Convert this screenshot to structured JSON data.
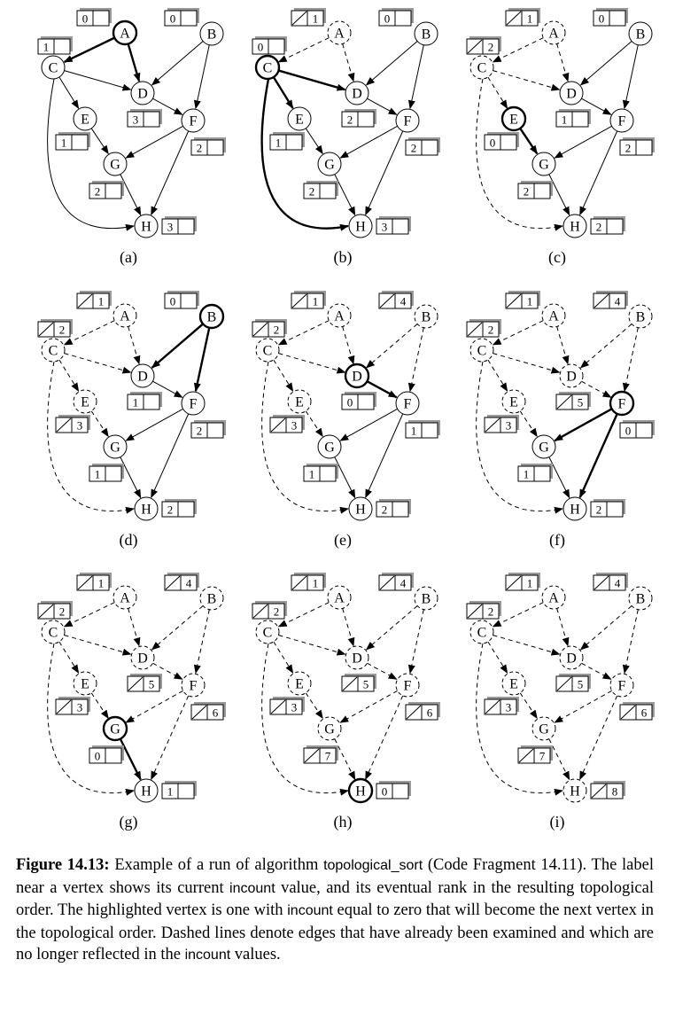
{
  "figure": {
    "vertices": [
      "A",
      "B",
      "C",
      "D",
      "E",
      "F",
      "G",
      "H"
    ],
    "edges": [
      [
        "A",
        "C"
      ],
      [
        "A",
        "D"
      ],
      [
        "B",
        "D"
      ],
      [
        "B",
        "F"
      ],
      [
        "C",
        "D"
      ],
      [
        "C",
        "E"
      ],
      [
        "C",
        "H"
      ],
      [
        "D",
        "F"
      ],
      [
        "E",
        "G"
      ],
      [
        "F",
        "G"
      ],
      [
        "F",
        "H"
      ],
      [
        "G",
        "H"
      ]
    ],
    "panels": [
      {
        "label": "(a)",
        "highlight": "A",
        "visited": [],
        "boxes": {
          "A": {
            "count": "0"
          },
          "B": {
            "count": "0"
          },
          "C": {
            "count": "1"
          },
          "D": {
            "count": "3"
          },
          "E": {
            "count": "1"
          },
          "F": {
            "count": "2"
          },
          "G": {
            "count": "2"
          },
          "H": {
            "count": "3"
          }
        }
      },
      {
        "label": "(b)",
        "highlight": "C",
        "visited": [
          "A"
        ],
        "boxes": {
          "A": {
            "count": "",
            "rank": "1"
          },
          "B": {
            "count": "0"
          },
          "C": {
            "count": "0"
          },
          "D": {
            "count": "2"
          },
          "E": {
            "count": "1"
          },
          "F": {
            "count": "2"
          },
          "G": {
            "count": "2"
          },
          "H": {
            "count": "3"
          }
        }
      },
      {
        "label": "(c)",
        "highlight": "E",
        "visited": [
          "A",
          "C"
        ],
        "boxes": {
          "A": {
            "count": "",
            "rank": "1"
          },
          "B": {
            "count": "0"
          },
          "C": {
            "count": "",
            "rank": "2"
          },
          "D": {
            "count": "1"
          },
          "E": {
            "count": "0"
          },
          "F": {
            "count": "2"
          },
          "G": {
            "count": "2"
          },
          "H": {
            "count": "2"
          }
        }
      },
      {
        "label": "(d)",
        "highlight": "B",
        "visited": [
          "A",
          "C",
          "E"
        ],
        "boxes": {
          "A": {
            "count": "",
            "rank": "1"
          },
          "B": {
            "count": "0"
          },
          "C": {
            "count": "",
            "rank": "2"
          },
          "D": {
            "count": "1"
          },
          "E": {
            "count": "",
            "rank": "3"
          },
          "F": {
            "count": "2"
          },
          "G": {
            "count": "1"
          },
          "H": {
            "count": "2"
          }
        }
      },
      {
        "label": "(e)",
        "highlight": "D",
        "visited": [
          "A",
          "C",
          "E",
          "B"
        ],
        "boxes": {
          "A": {
            "count": "",
            "rank": "1"
          },
          "B": {
            "count": "",
            "rank": "4"
          },
          "C": {
            "count": "",
            "rank": "2"
          },
          "D": {
            "count": "0"
          },
          "E": {
            "count": "",
            "rank": "3"
          },
          "F": {
            "count": "1"
          },
          "G": {
            "count": "1"
          },
          "H": {
            "count": "2"
          }
        }
      },
      {
        "label": "(f)",
        "highlight": "F",
        "visited": [
          "A",
          "C",
          "E",
          "B",
          "D"
        ],
        "boxes": {
          "A": {
            "count": "",
            "rank": "1"
          },
          "B": {
            "count": "",
            "rank": "4"
          },
          "C": {
            "count": "",
            "rank": "2"
          },
          "D": {
            "count": "",
            "rank": "5"
          },
          "E": {
            "count": "",
            "rank": "3"
          },
          "F": {
            "count": "0"
          },
          "G": {
            "count": "1"
          },
          "H": {
            "count": "2"
          }
        }
      },
      {
        "label": "(g)",
        "highlight": "G",
        "visited": [
          "A",
          "C",
          "E",
          "B",
          "D",
          "F"
        ],
        "boxes": {
          "A": {
            "count": "",
            "rank": "1"
          },
          "B": {
            "count": "",
            "rank": "4"
          },
          "C": {
            "count": "",
            "rank": "2"
          },
          "D": {
            "count": "",
            "rank": "5"
          },
          "E": {
            "count": "",
            "rank": "3"
          },
          "F": {
            "count": "",
            "rank": "6"
          },
          "G": {
            "count": "0"
          },
          "H": {
            "count": "1"
          }
        }
      },
      {
        "label": "(h)",
        "highlight": "H",
        "visited": [
          "A",
          "C",
          "E",
          "B",
          "D",
          "F",
          "G"
        ],
        "boxes": {
          "A": {
            "count": "",
            "rank": "1"
          },
          "B": {
            "count": "",
            "rank": "4"
          },
          "C": {
            "count": "",
            "rank": "2"
          },
          "D": {
            "count": "",
            "rank": "5"
          },
          "E": {
            "count": "",
            "rank": "3"
          },
          "F": {
            "count": "",
            "rank": "6"
          },
          "G": {
            "count": "",
            "rank": "7"
          },
          "H": {
            "count": "0"
          }
        }
      },
      {
        "label": "(i)",
        "highlight": "",
        "visited": [
          "A",
          "C",
          "E",
          "B",
          "D",
          "F",
          "G",
          "H"
        ],
        "boxes": {
          "A": {
            "count": "",
            "rank": "1"
          },
          "B": {
            "count": "",
            "rank": "4"
          },
          "C": {
            "count": "",
            "rank": "2"
          },
          "D": {
            "count": "",
            "rank": "5"
          },
          "E": {
            "count": "",
            "rank": "3"
          },
          "F": {
            "count": "",
            "rank": "6"
          },
          "G": {
            "count": "",
            "rank": "7"
          },
          "H": {
            "count": "",
            "rank": "8"
          }
        }
      }
    ]
  },
  "caption": {
    "label": "Figure 14.13:",
    "part1": " Example of a run of algorithm ",
    "code1": "topological_sort",
    "part2": " (Code Fragment 14.11). The label near a vertex shows its current ",
    "code2": "incount",
    "part3": " value, and its eventual rank in the resulting topological order. The highlighted vertex is one with ",
    "code3": "incount",
    "part4": " equal to zero that will become the next vertex in the topological order. Dashed lines denote edges that have already been examined and which are no longer reflected in the ",
    "code4": "incount",
    "part5": " values."
  }
}
